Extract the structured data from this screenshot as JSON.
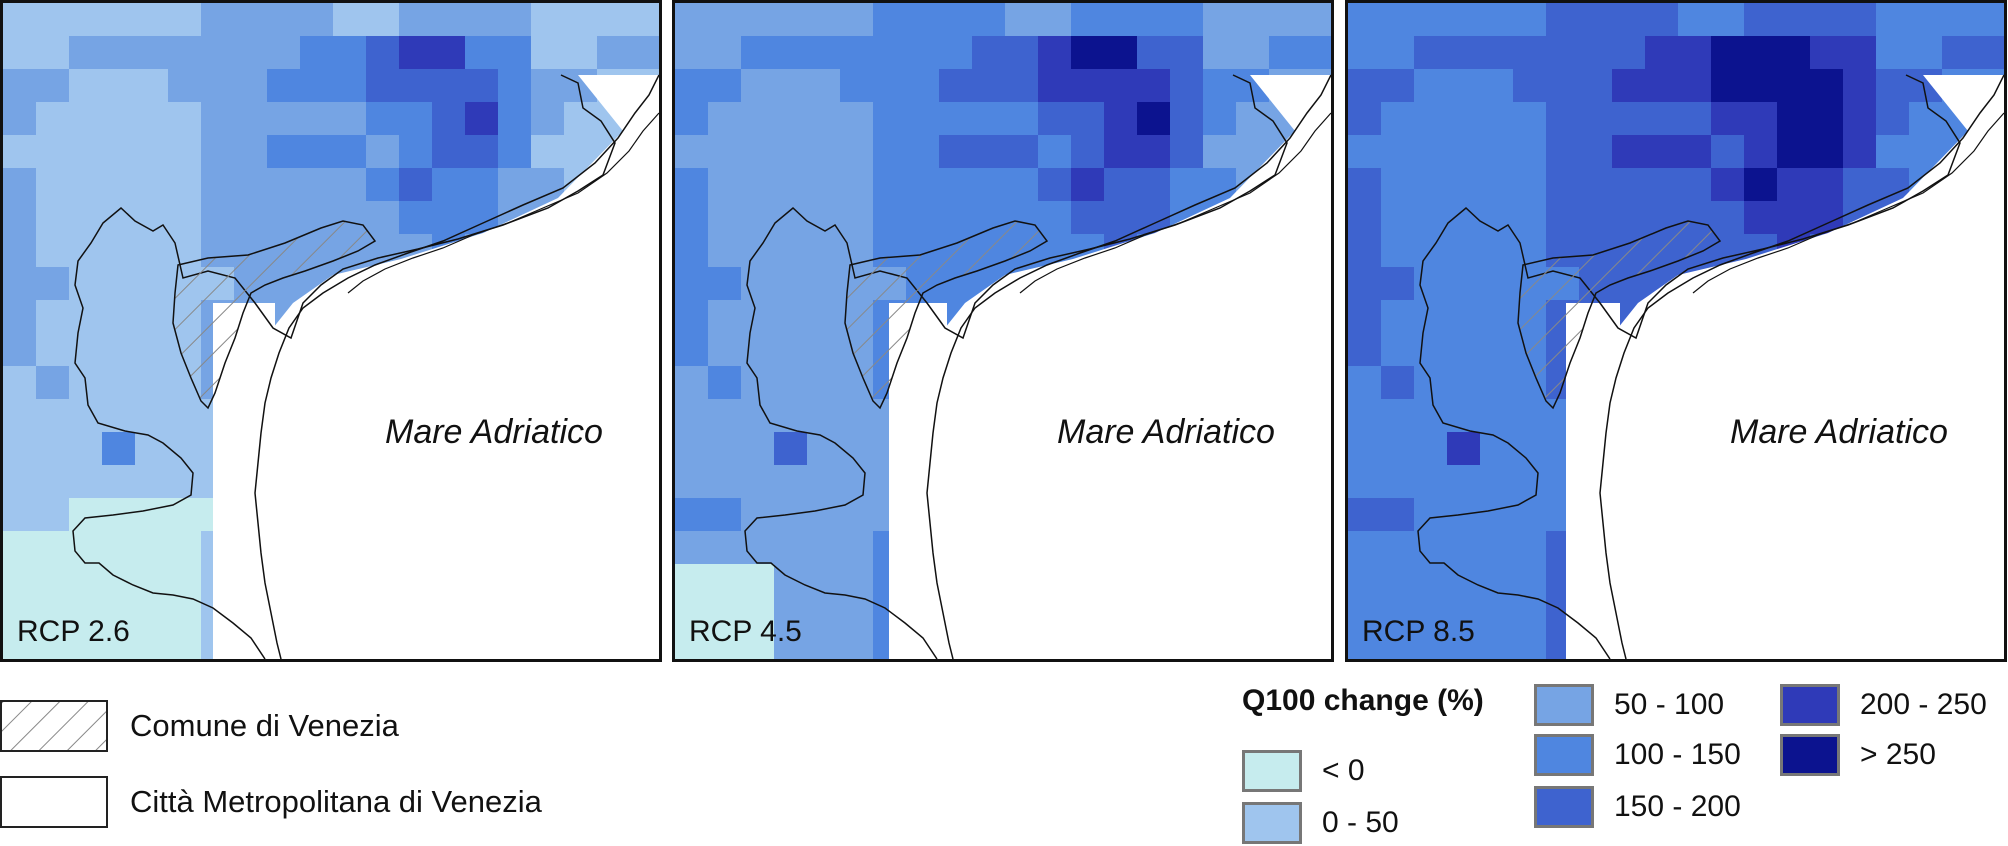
{
  "map": {
    "sea_label": "Mare Adriatico",
    "panels": [
      {
        "scenario": "RCP 2.6"
      },
      {
        "scenario": "RCP 4.5"
      },
      {
        "scenario": "RCP 8.5"
      }
    ]
  },
  "boundary_legend": {
    "items": [
      {
        "label": "Comune di Venezia",
        "pattern": "hatched"
      },
      {
        "label": "Città Metropolitana di Venezia",
        "pattern": "outline"
      }
    ]
  },
  "change_legend": {
    "title": "Q100 change (%)",
    "classes": [
      {
        "label": "< 0",
        "color": "#c6ecee"
      },
      {
        "label": "0 - 50",
        "color": "#9fc5ee"
      },
      {
        "label": "50 - 100",
        "color": "#76a4e4"
      },
      {
        "label": "100 - 150",
        "color": "#4f86e0"
      },
      {
        "label": "150 - 200",
        "color": "#3e63cf"
      },
      {
        "label": "200 - 250",
        "color": "#2f3ab8"
      },
      {
        "label": "> 250",
        "color": "#0c138f"
      }
    ]
  }
}
